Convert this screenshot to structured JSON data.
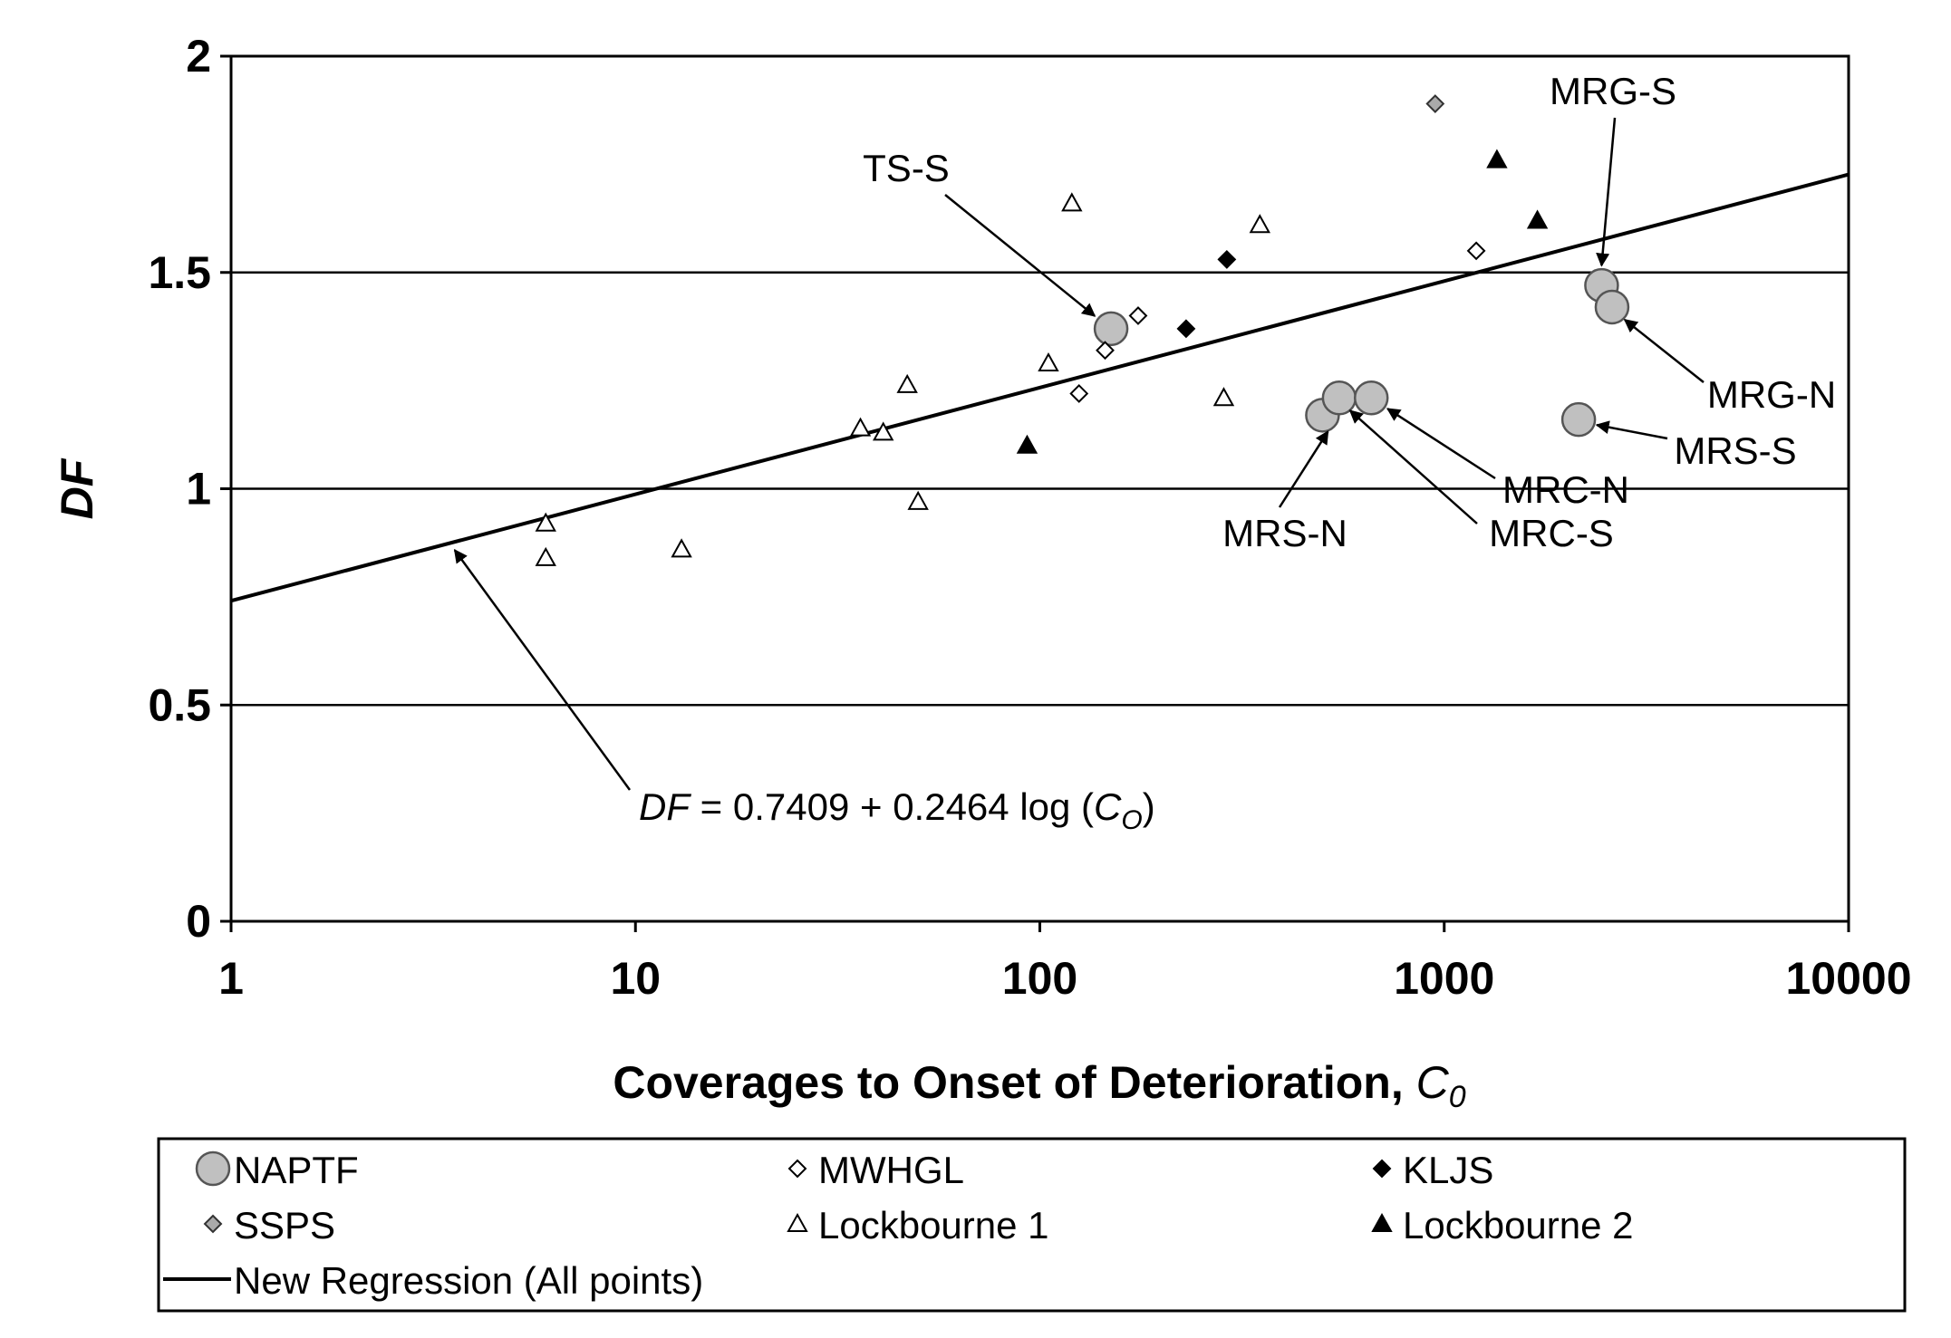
{
  "chart_data": {
    "type": "scatter",
    "title": "",
    "xscale": "log",
    "xlim": [
      1,
      10000
    ],
    "ylim": [
      0,
      2
    ],
    "xticks": [
      "1",
      "10",
      "100",
      "1000",
      "10000"
    ],
    "yticks": [
      "0",
      "0.5",
      "1",
      "1.5",
      "2"
    ],
    "xlabel": "Coverages to Onset of Deterioration, ",
    "xlabel_symbol": "C",
    "xlabel_sub": "0",
    "ylabel": "DF",
    "grid": "horizontal",
    "series": [
      {
        "name": "NAPTF",
        "marker": "large-gray-circle",
        "points": [
          {
            "label": "TS-S",
            "x": 150,
            "y": 1.37
          },
          {
            "label": "MRG-S",
            "x": 2450,
            "y": 1.47
          },
          {
            "label": "MRG-N",
            "x": 2600,
            "y": 1.42
          },
          {
            "label": "MRS-S",
            "x": 2150,
            "y": 1.16
          },
          {
            "label": "MRS-N",
            "x": 500,
            "y": 1.17
          },
          {
            "label": "MRC-S",
            "x": 550,
            "y": 1.21
          },
          {
            "label": "MRC-N",
            "x": 660,
            "y": 1.21
          }
        ]
      },
      {
        "name": "MWHGL",
        "marker": "open-diamond",
        "points": [
          {
            "x": 125,
            "y": 1.22
          },
          {
            "x": 145,
            "y": 1.32
          },
          {
            "x": 175,
            "y": 1.4
          },
          {
            "x": 1200,
            "y": 1.55
          }
        ]
      },
      {
        "name": "KLJS",
        "marker": "filled-diamond",
        "points": [
          {
            "x": 230,
            "y": 1.37
          },
          {
            "x": 290,
            "y": 1.53
          }
        ]
      },
      {
        "name": "SSPS",
        "marker": "gray-diamond",
        "points": [
          {
            "x": 950,
            "y": 1.89
          }
        ]
      },
      {
        "name": "Lockbourne 1",
        "marker": "open-triangle",
        "points": [
          {
            "x": 6,
            "y": 0.92
          },
          {
            "x": 6,
            "y": 0.84
          },
          {
            "x": 13,
            "y": 0.86
          },
          {
            "x": 36,
            "y": 1.14
          },
          {
            "x": 41,
            "y": 1.13
          },
          {
            "x": 47,
            "y": 1.24
          },
          {
            "x": 50,
            "y": 0.97
          },
          {
            "x": 105,
            "y": 1.29
          },
          {
            "x": 120,
            "y": 1.66
          },
          {
            "x": 285,
            "y": 1.21
          },
          {
            "x": 350,
            "y": 1.61
          }
        ]
      },
      {
        "name": "Lockbourne 2",
        "marker": "filled-triangle",
        "points": [
          {
            "x": 93,
            "y": 1.1
          },
          {
            "x": 1350,
            "y": 1.76
          },
          {
            "x": 1700,
            "y": 1.62
          }
        ]
      }
    ],
    "regression": {
      "name": "New Regression (All points)",
      "intercept": 0.7409,
      "slope": 0.2464,
      "equation_prefix": "DF",
      "equation_body": " = 0.7409 + 0.2464 log (",
      "equation_symbol": "C",
      "equation_sub": "O",
      "equation_suffix": ")"
    },
    "annotations": [
      {
        "text": "TS-S",
        "target": "TS-S"
      },
      {
        "text": "MRG-S",
        "target": "MRG-S"
      },
      {
        "text": "MRG-N",
        "target": "MRG-N"
      },
      {
        "text": "MRS-S",
        "target": "MRS-S"
      },
      {
        "text": "MRC-N",
        "target": "MRC-N"
      },
      {
        "text": "MRC-S",
        "target": "MRC-S"
      },
      {
        "text": "MRS-N",
        "target": "MRS-N"
      }
    ],
    "legend": {
      "position": "bottom",
      "entries": [
        "NAPTF",
        "MWHGL",
        "KLJS",
        "SSPS",
        "Lockbourne 1",
        "Lockbourne 2",
        "New Regression (All points)"
      ]
    }
  }
}
